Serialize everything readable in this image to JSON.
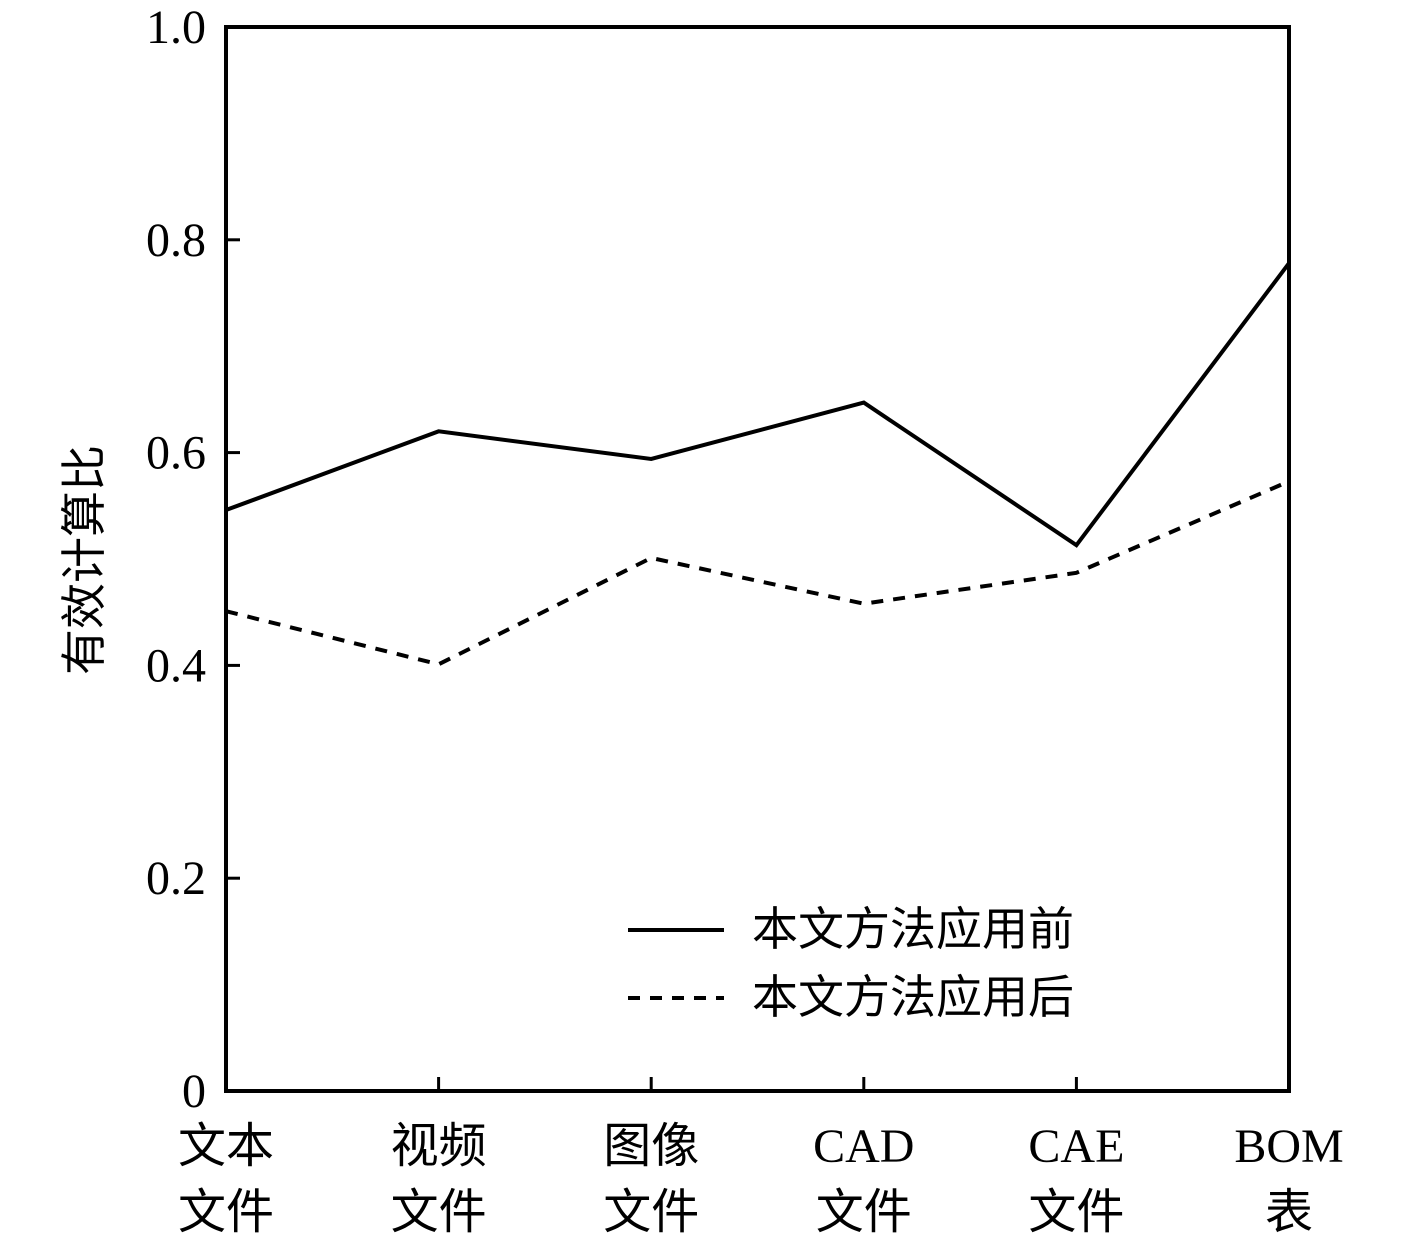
{
  "chart_data": {
    "type": "line",
    "ylabel": "有效计算比",
    "ylim": [
      0,
      1.0
    ],
    "yticks": [
      {
        "value": 0,
        "label": "0"
      },
      {
        "value": 0.2,
        "label": "0.2"
      },
      {
        "value": 0.4,
        "label": "0.4"
      },
      {
        "value": 0.6,
        "label": "0.6"
      },
      {
        "value": 0.8,
        "label": "0.8"
      },
      {
        "value": 1.0,
        "label": "1.0"
      }
    ],
    "categories": [
      [
        "文本",
        "文件"
      ],
      [
        "视频",
        "文件"
      ],
      [
        "图像",
        "文件"
      ],
      [
        "CAD",
        "文件"
      ],
      [
        "CAE",
        "文件"
      ],
      [
        "BOM",
        "表"
      ]
    ],
    "series": [
      {
        "name": "本文方法应用前",
        "style": "solid",
        "values": [
          0.546,
          0.62,
          0.594,
          0.647,
          0.513,
          0.778
        ]
      },
      {
        "name": "本文方法应用后",
        "style": "dashed",
        "values": [
          0.451,
          0.401,
          0.501,
          0.458,
          0.487,
          0.573
        ]
      }
    ],
    "legend_position": "bottom-right",
    "grid": false
  }
}
